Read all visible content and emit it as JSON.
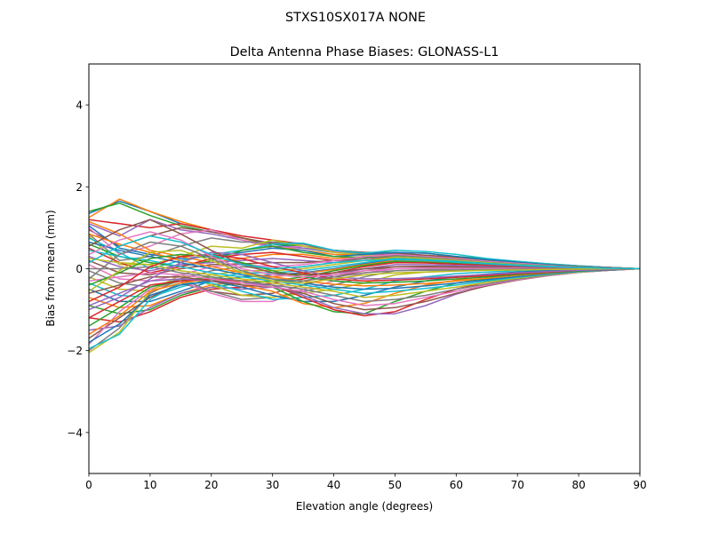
{
  "suptitle": "STXS10SX017A    NONE",
  "chart_data": {
    "type": "line",
    "title": "Delta Antenna Phase Biases: GLONASS-L1",
    "xlabel": "Elevation angle (degrees)",
    "ylabel": "Bias from mean (mm)",
    "xlim": [
      0,
      90
    ],
    "ylim": [
      -5,
      5
    ],
    "xticks": [
      0,
      10,
      20,
      30,
      40,
      50,
      60,
      70,
      80,
      90
    ],
    "yticks": [
      -4,
      -2,
      0,
      2,
      4
    ],
    "xtick_labels": [
      "0",
      "10",
      "20",
      "30",
      "40",
      "50",
      "60",
      "70",
      "80",
      "90"
    ],
    "ytick_labels": [
      "−4",
      "−2",
      "0",
      "2",
      "4"
    ],
    "grid": false,
    "legend": "none",
    "x": [
      0,
      5,
      10,
      15,
      20,
      25,
      30,
      35,
      40,
      45,
      50,
      55,
      60,
      65,
      70,
      75,
      80,
      85,
      90
    ],
    "colors": [
      "#1f77b4",
      "#ff7f0e",
      "#2ca02c",
      "#d62728",
      "#9467bd",
      "#8c564b",
      "#e377c2",
      "#7f7f7f",
      "#bcbd22",
      "#17becf"
    ],
    "series": [
      {
        "values": [
          1.35,
          1.65,
          1.4,
          1.1,
          0.95,
          0.75,
          0.6,
          0.5,
          0.4,
          0.35,
          0.3,
          0.28,
          0.22,
          0.18,
          0.12,
          0.08,
          0.05,
          0.02,
          0.0
        ]
      },
      {
        "values": [
          1.25,
          1.7,
          1.4,
          1.15,
          0.95,
          0.75,
          0.55,
          0.45,
          0.35,
          0.33,
          0.32,
          0.3,
          0.25,
          0.2,
          0.15,
          0.1,
          0.06,
          0.03,
          0.0
        ]
      },
      {
        "values": [
          1.4,
          1.6,
          1.3,
          1.05,
          0.9,
          0.75,
          0.6,
          0.55,
          0.45,
          0.4,
          0.4,
          0.38,
          0.3,
          0.24,
          0.18,
          0.12,
          0.07,
          0.03,
          0.0
        ]
      },
      {
        "values": [
          1.2,
          1.1,
          1.0,
          1.1,
          0.95,
          0.8,
          0.7,
          0.6,
          0.45,
          0.38,
          0.35,
          0.3,
          0.26,
          0.2,
          0.15,
          0.1,
          0.06,
          0.03,
          0.0
        ]
      },
      {
        "values": [
          1.1,
          0.8,
          1.2,
          0.95,
          0.85,
          0.7,
          0.55,
          0.5,
          0.42,
          0.38,
          0.36,
          0.32,
          0.27,
          0.21,
          0.16,
          0.11,
          0.06,
          0.03,
          0.0
        ]
      },
      {
        "values": [
          0.95,
          0.55,
          0.8,
          1.0,
          0.9,
          0.75,
          0.62,
          0.6,
          0.45,
          0.4,
          0.38,
          0.33,
          0.28,
          0.22,
          0.17,
          0.11,
          0.06,
          0.03,
          0.0
        ]
      },
      {
        "values": [
          1.0,
          0.35,
          0.55,
          0.85,
          0.95,
          0.7,
          0.5,
          0.55,
          0.42,
          0.35,
          0.3,
          0.28,
          0.24,
          0.18,
          0.13,
          0.09,
          0.05,
          0.02,
          0.0
        ]
      },
      {
        "values": [
          0.85,
          0.2,
          0.3,
          0.55,
          0.75,
          0.65,
          0.65,
          0.62,
          0.45,
          0.35,
          0.32,
          0.3,
          0.25,
          0.2,
          0.15,
          0.1,
          0.06,
          0.03,
          0.0
        ]
      },
      {
        "values": [
          0.8,
          0.1,
          0.1,
          0.3,
          0.55,
          0.5,
          0.7,
          0.55,
          0.4,
          0.33,
          0.3,
          0.27,
          0.23,
          0.18,
          0.13,
          0.09,
          0.05,
          0.02,
          0.0
        ]
      },
      {
        "values": [
          0.75,
          0.4,
          0.0,
          0.2,
          0.35,
          0.45,
          0.6,
          0.62,
          0.45,
          0.38,
          0.45,
          0.42,
          0.35,
          0.25,
          0.18,
          0.12,
          0.07,
          0.03,
          0.0
        ]
      },
      {
        "values": [
          1.05,
          0.5,
          0.35,
          0.25,
          0.3,
          0.4,
          0.5,
          0.45,
          0.3,
          0.35,
          0.4,
          0.38,
          0.3,
          0.22,
          0.16,
          0.1,
          0.06,
          0.03,
          0.0
        ]
      },
      {
        "values": [
          1.15,
          0.85,
          0.45,
          0.3,
          0.15,
          0.25,
          0.35,
          0.35,
          0.25,
          0.3,
          0.33,
          0.3,
          0.25,
          0.18,
          0.13,
          0.08,
          0.05,
          0.02,
          0.0
        ]
      },
      {
        "values": [
          0.6,
          0.3,
          0.15,
          0.05,
          0.2,
          0.45,
          0.55,
          0.4,
          0.3,
          0.28,
          0.28,
          0.25,
          0.2,
          0.16,
          0.12,
          0.08,
          0.04,
          0.02,
          0.0
        ]
      },
      {
        "values": [
          0.5,
          0.15,
          -0.1,
          0.05,
          0.25,
          0.35,
          0.4,
          0.3,
          0.2,
          0.25,
          0.28,
          0.24,
          0.2,
          0.15,
          0.11,
          0.07,
          0.04,
          0.02,
          0.0
        ]
      },
      {
        "values": [
          0.3,
          0.05,
          -0.05,
          0.1,
          0.15,
          0.2,
          0.25,
          0.2,
          0.15,
          0.2,
          0.25,
          0.22,
          0.18,
          0.13,
          0.1,
          0.06,
          0.03,
          0.01,
          0.0
        ]
      },
      {
        "values": [
          0.2,
          -0.1,
          -0.15,
          0.0,
          0.1,
          0.12,
          0.15,
          0.15,
          0.2,
          0.25,
          0.28,
          0.24,
          0.19,
          0.14,
          0.1,
          0.06,
          0.03,
          0.01,
          0.0
        ]
      },
      {
        "values": [
          0.1,
          -0.25,
          -0.3,
          -0.15,
          0.05,
          0.1,
          0.05,
          0.1,
          0.2,
          0.3,
          0.35,
          0.3,
          0.24,
          0.18,
          0.13,
          0.08,
          0.04,
          0.02,
          0.0
        ]
      },
      {
        "values": [
          -0.05,
          -0.35,
          -0.45,
          -0.25,
          -0.05,
          0.05,
          0.0,
          0.05,
          0.15,
          0.25,
          0.32,
          0.28,
          0.22,
          0.16,
          0.11,
          0.07,
          0.04,
          0.02,
          0.0
        ]
      },
      {
        "values": [
          -0.2,
          -0.5,
          -0.55,
          -0.35,
          -0.15,
          -0.05,
          -0.05,
          0.0,
          0.1,
          0.2,
          0.28,
          0.25,
          0.2,
          0.15,
          0.1,
          0.06,
          0.03,
          0.01,
          0.0
        ]
      },
      {
        "values": [
          -0.35,
          -0.65,
          -0.7,
          -0.45,
          -0.25,
          -0.1,
          -0.1,
          -0.05,
          0.05,
          0.15,
          0.25,
          0.22,
          0.18,
          0.13,
          0.09,
          0.06,
          0.03,
          0.01,
          0.0
        ]
      },
      {
        "values": [
          -0.5,
          -0.8,
          -0.8,
          -0.55,
          -0.3,
          -0.2,
          -0.15,
          -0.1,
          0.0,
          0.12,
          0.22,
          0.2,
          0.16,
          0.12,
          0.08,
          0.05,
          0.03,
          0.01,
          0.0
        ]
      },
      {
        "values": [
          -0.7,
          -0.95,
          -0.9,
          -0.6,
          -0.4,
          -0.3,
          -0.2,
          -0.12,
          -0.02,
          0.1,
          0.2,
          0.18,
          0.14,
          0.1,
          0.07,
          0.05,
          0.02,
          0.01,
          0.0
        ]
      },
      {
        "values": [
          -0.9,
          -1.1,
          -1.0,
          -0.65,
          -0.45,
          -0.35,
          -0.3,
          -0.2,
          -0.05,
          0.08,
          0.18,
          0.16,
          0.13,
          0.09,
          0.06,
          0.04,
          0.02,
          0.01,
          0.0
        ]
      },
      {
        "values": [
          -1.2,
          -1.3,
          -1.05,
          -0.7,
          -0.5,
          -0.45,
          -0.35,
          -0.25,
          -0.1,
          0.05,
          0.15,
          0.14,
          0.11,
          0.08,
          0.05,
          0.03,
          0.02,
          0.01,
          0.0
        ]
      },
      {
        "values": [
          -1.5,
          -1.4,
          -0.95,
          -0.6,
          -0.45,
          -0.5,
          -0.45,
          -0.3,
          -0.15,
          0.0,
          0.1,
          0.1,
          0.08,
          0.06,
          0.04,
          0.03,
          0.02,
          0.01,
          0.0
        ]
      },
      {
        "values": [
          -1.7,
          -1.2,
          -0.7,
          -0.35,
          -0.55,
          -0.65,
          -0.6,
          -0.4,
          -0.2,
          -0.05,
          0.05,
          0.06,
          0.05,
          0.04,
          0.03,
          0.02,
          0.01,
          0.0,
          0.0
        ]
      },
      {
        "values": [
          -1.85,
          -1.05,
          -0.5,
          -0.3,
          -0.6,
          -0.8,
          -0.8,
          -0.5,
          -0.3,
          -0.1,
          0.0,
          0.02,
          0.02,
          0.02,
          0.02,
          0.01,
          0.01,
          0.0,
          0.0
        ]
      },
      {
        "values": [
          -2.0,
          -1.45,
          -0.6,
          -0.25,
          -0.55,
          -0.75,
          -0.7,
          -0.55,
          -0.4,
          -0.2,
          -0.05,
          -0.02,
          0.0,
          0.01,
          0.01,
          0.01,
          0.0,
          0.0,
          0.0
        ]
      },
      {
        "values": [
          -2.05,
          -1.55,
          -0.55,
          -0.15,
          -0.4,
          -0.65,
          -0.7,
          -0.6,
          -0.5,
          -0.35,
          -0.15,
          -0.08,
          -0.05,
          -0.03,
          -0.02,
          -0.01,
          -0.01,
          0.0,
          0.0
        ]
      },
      {
        "values": [
          -1.95,
          -1.6,
          -0.75,
          -0.35,
          -0.35,
          -0.55,
          -0.75,
          -0.7,
          -0.65,
          -0.5,
          -0.3,
          -0.2,
          -0.12,
          -0.08,
          -0.05,
          -0.03,
          -0.02,
          -0.01,
          0.0
        ]
      },
      {
        "values": [
          -1.8,
          -1.35,
          -0.65,
          -0.4,
          -0.3,
          -0.45,
          -0.65,
          -0.8,
          -0.8,
          -0.65,
          -0.45,
          -0.3,
          -0.2,
          -0.13,
          -0.08,
          -0.05,
          -0.03,
          -0.01,
          0.0
        ]
      },
      {
        "values": [
          -1.6,
          -1.15,
          -0.55,
          -0.35,
          -0.25,
          -0.4,
          -0.55,
          -0.85,
          -0.95,
          -0.85,
          -0.6,
          -0.4,
          -0.28,
          -0.18,
          -0.12,
          -0.07,
          -0.04,
          -0.02,
          0.0
        ]
      },
      {
        "values": [
          -1.4,
          -0.95,
          -0.45,
          -0.3,
          -0.2,
          -0.3,
          -0.45,
          -0.8,
          -1.05,
          -1.1,
          -0.8,
          -0.55,
          -0.35,
          -0.24,
          -0.15,
          -0.09,
          -0.05,
          -0.02,
          0.0
        ]
      },
      {
        "values": [
          -1.2,
          -0.8,
          -0.4,
          -0.3,
          -0.25,
          -0.3,
          -0.4,
          -0.7,
          -1.0,
          -1.15,
          -1.05,
          -0.75,
          -0.5,
          -0.32,
          -0.2,
          -0.12,
          -0.06,
          -0.03,
          0.0
        ]
      },
      {
        "values": [
          -0.9,
          -0.6,
          -0.3,
          -0.25,
          -0.3,
          -0.35,
          -0.4,
          -0.65,
          -0.95,
          -1.1,
          -1.1,
          -0.9,
          -0.62,
          -0.4,
          -0.25,
          -0.15,
          -0.08,
          -0.04,
          0.0
        ]
      },
      {
        "values": [
          -0.6,
          -0.4,
          -0.2,
          -0.2,
          -0.3,
          -0.4,
          -0.45,
          -0.6,
          -0.85,
          -1.0,
          -0.95,
          -0.8,
          -0.6,
          -0.42,
          -0.28,
          -0.17,
          -0.09,
          -0.04,
          0.0
        ]
      },
      {
        "values": [
          -0.3,
          -0.2,
          -0.1,
          -0.15,
          -0.25,
          -0.35,
          -0.45,
          -0.55,
          -0.75,
          -0.9,
          -0.85,
          -0.7,
          -0.55,
          -0.4,
          -0.27,
          -0.17,
          -0.09,
          -0.04,
          0.0
        ]
      },
      {
        "values": [
          0.0,
          0.0,
          0.05,
          -0.1,
          -0.2,
          -0.3,
          -0.4,
          -0.5,
          -0.65,
          -0.8,
          -0.75,
          -0.65,
          -0.5,
          -0.37,
          -0.25,
          -0.16,
          -0.08,
          -0.04,
          0.0
        ]
      },
      {
        "values": [
          0.25,
          0.15,
          0.1,
          -0.05,
          -0.15,
          -0.25,
          -0.35,
          -0.45,
          -0.55,
          -0.7,
          -0.65,
          -0.55,
          -0.45,
          -0.33,
          -0.23,
          -0.14,
          -0.08,
          -0.03,
          0.0
        ]
      },
      {
        "values": [
          0.45,
          0.3,
          0.2,
          0.05,
          -0.1,
          -0.2,
          -0.3,
          -0.4,
          -0.5,
          -0.6,
          -0.55,
          -0.48,
          -0.4,
          -0.3,
          -0.21,
          -0.13,
          -0.07,
          -0.03,
          0.0
        ]
      },
      {
        "values": [
          0.65,
          0.45,
          0.3,
          0.15,
          0.0,
          -0.15,
          -0.25,
          -0.35,
          -0.45,
          -0.5,
          -0.48,
          -0.42,
          -0.35,
          -0.27,
          -0.19,
          -0.12,
          -0.06,
          -0.03,
          0.0
        ]
      },
      {
        "values": [
          0.85,
          0.6,
          0.4,
          0.2,
          0.05,
          -0.1,
          -0.2,
          -0.3,
          -0.38,
          -0.42,
          -0.4,
          -0.36,
          -0.3,
          -0.23,
          -0.16,
          -0.1,
          -0.05,
          -0.02,
          0.0
        ]
      },
      {
        "values": [
          -0.4,
          -0.1,
          0.25,
          0.35,
          0.3,
          0.15,
          -0.05,
          -0.2,
          -0.3,
          -0.35,
          -0.33,
          -0.3,
          -0.25,
          -0.2,
          -0.14,
          -0.09,
          -0.05,
          -0.02,
          0.0
        ]
      },
      {
        "values": [
          -0.8,
          -0.45,
          0.05,
          0.3,
          0.35,
          0.25,
          0.05,
          -0.1,
          -0.25,
          -0.3,
          -0.28,
          -0.25,
          -0.21,
          -0.17,
          -0.12,
          -0.08,
          -0.04,
          -0.02,
          0.0
        ]
      },
      {
        "values": [
          -1.0,
          -0.7,
          -0.25,
          0.15,
          0.4,
          0.35,
          0.15,
          -0.05,
          -0.2,
          -0.25,
          -0.24,
          -0.22,
          -0.18,
          -0.14,
          -0.1,
          -0.07,
          -0.04,
          -0.02,
          0.0
        ]
      },
      {
        "values": [
          0.55,
          0.95,
          1.2,
          0.85,
          0.45,
          0.1,
          -0.1,
          -0.15,
          -0.1,
          0.0,
          0.05,
          0.05,
          0.04,
          0.03,
          0.02,
          0.02,
          0.01,
          0.0,
          0.0
        ]
      },
      {
        "values": [
          0.35,
          0.7,
          0.9,
          0.7,
          0.3,
          0.0,
          -0.15,
          -0.2,
          -0.15,
          -0.05,
          0.0,
          0.01,
          0.01,
          0.01,
          0.01,
          0.0,
          0.0,
          0.0,
          0.0
        ]
      },
      {
        "values": [
          -0.25,
          0.35,
          0.65,
          0.55,
          0.25,
          -0.05,
          -0.25,
          -0.3,
          -0.2,
          -0.1,
          -0.05,
          -0.04,
          -0.03,
          -0.02,
          -0.01,
          -0.01,
          0.0,
          0.0,
          0.0
        ]
      },
      {
        "values": [
          -0.55,
          -0.05,
          0.4,
          0.45,
          0.2,
          -0.1,
          -0.3,
          -0.35,
          -0.25,
          -0.15,
          -0.1,
          -0.08,
          -0.06,
          -0.04,
          -0.03,
          -0.02,
          -0.01,
          0.0,
          0.0
        ]
      },
      {
        "values": [
          0.15,
          0.55,
          0.8,
          0.65,
          0.35,
          0.1,
          0.0,
          0.05,
          0.15,
          0.2,
          0.22,
          0.2,
          0.16,
          0.12,
          0.08,
          0.05,
          0.03,
          0.01,
          0.0
        ]
      }
    ]
  }
}
